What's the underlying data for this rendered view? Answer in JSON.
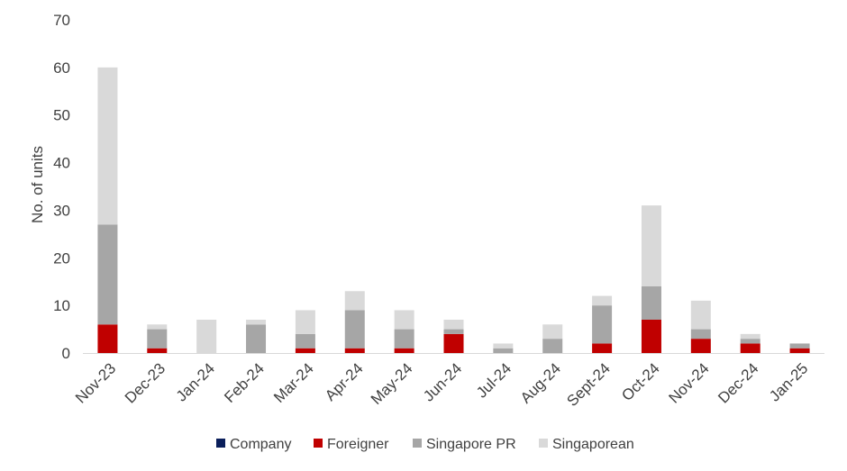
{
  "chart_data": {
    "type": "bar",
    "stacked": true,
    "title": "",
    "xlabel": "",
    "ylabel": "No. of units",
    "ylim": [
      0,
      70
    ],
    "yticks": [
      0,
      10,
      20,
      30,
      40,
      50,
      60,
      70
    ],
    "grid": false,
    "legend_position": "bottom",
    "categories": [
      "Nov-23",
      "Dec-23",
      "Jan-24",
      "Feb-24",
      "Mar-24",
      "Apr-24",
      "May-24",
      "Jun-24",
      "Jul-24",
      "Aug-24",
      "Sept-24",
      "Oct-24",
      "Nov-24",
      "Dec-24",
      "Jan-25"
    ],
    "series": [
      {
        "name": "Company",
        "color": "#0b1f5b",
        "values": [
          0,
          0,
          0,
          0,
          0,
          0,
          0,
          0,
          0,
          0,
          0,
          0,
          0,
          0,
          0
        ]
      },
      {
        "name": "Foreigner",
        "color": "#c00000",
        "values": [
          6,
          1,
          0,
          0,
          1,
          1,
          1,
          4,
          0,
          0,
          2,
          7,
          3,
          2,
          1
        ]
      },
      {
        "name": "Singapore PR",
        "color": "#a6a6a6",
        "values": [
          21,
          4,
          0,
          6,
          3,
          8,
          4,
          1,
          1,
          3,
          8,
          7,
          2,
          1,
          1
        ]
      },
      {
        "name": "Singaporean",
        "color": "#d9d9d9",
        "values": [
          33,
          1,
          7,
          1,
          5,
          4,
          4,
          2,
          1,
          3,
          2,
          17,
          6,
          1,
          0
        ]
      }
    ]
  }
}
